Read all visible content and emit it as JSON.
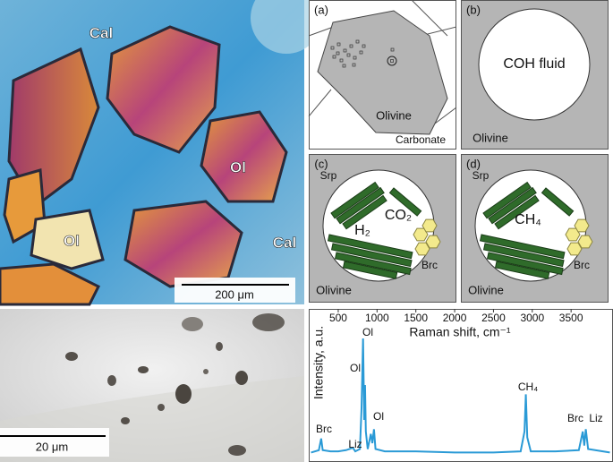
{
  "photos": {
    "top": {
      "labels": [
        "Cal",
        "Ol",
        "Ol",
        "Cal"
      ],
      "scale_bar": "200 μm"
    },
    "bottom": {
      "scale_bar": "20 μm"
    }
  },
  "panels": [
    {
      "letter": "(a)",
      "labels": [
        "Olivine",
        "Carbonate"
      ]
    },
    {
      "letter": "(b)",
      "labels": [
        "COH fluid",
        "Olivine"
      ]
    },
    {
      "letter": "(c)",
      "labels": [
        "Srp",
        "H₂",
        "CO₂",
        "Brc",
        "Olivine"
      ]
    },
    {
      "letter": "(d)",
      "labels": [
        "Srp",
        "CH₄",
        "Brc",
        "Olivine"
      ]
    }
  ],
  "chart_data": {
    "type": "line",
    "x_label": "Raman shift, cm⁻¹",
    "y_label": "Intensity, a.u.",
    "color": "#2a9ad6",
    "x": [
      150,
      250,
      280,
      300,
      400,
      500,
      600,
      690,
      720,
      780,
      800,
      820,
      835,
      845,
      855,
      880,
      920,
      940,
      960,
      980,
      1100,
      1500,
      2000,
      2500,
      2850,
      2900,
      2917,
      2935,
      2980,
      3300,
      3600,
      3650,
      3670,
      3690,
      3720,
      4000
    ],
    "values": [
      2,
      4,
      14,
      4,
      3,
      3,
      4,
      6,
      3,
      5,
      40,
      100,
      30,
      60,
      20,
      5,
      18,
      10,
      22,
      5,
      3,
      3,
      2,
      2,
      3,
      20,
      52,
      15,
      3,
      3,
      4,
      20,
      8,
      22,
      5,
      2
    ],
    "xlim": [
      120,
      4040
    ],
    "ylim": [
      0,
      100
    ],
    "xticks": [
      500,
      1000,
      1500,
      2000,
      2500,
      3000,
      3500
    ],
    "annotations": [
      "Brc",
      "Liz",
      "Ol",
      "Ol",
      "Ol",
      "CH₄",
      "Brc",
      "Liz"
    ]
  }
}
